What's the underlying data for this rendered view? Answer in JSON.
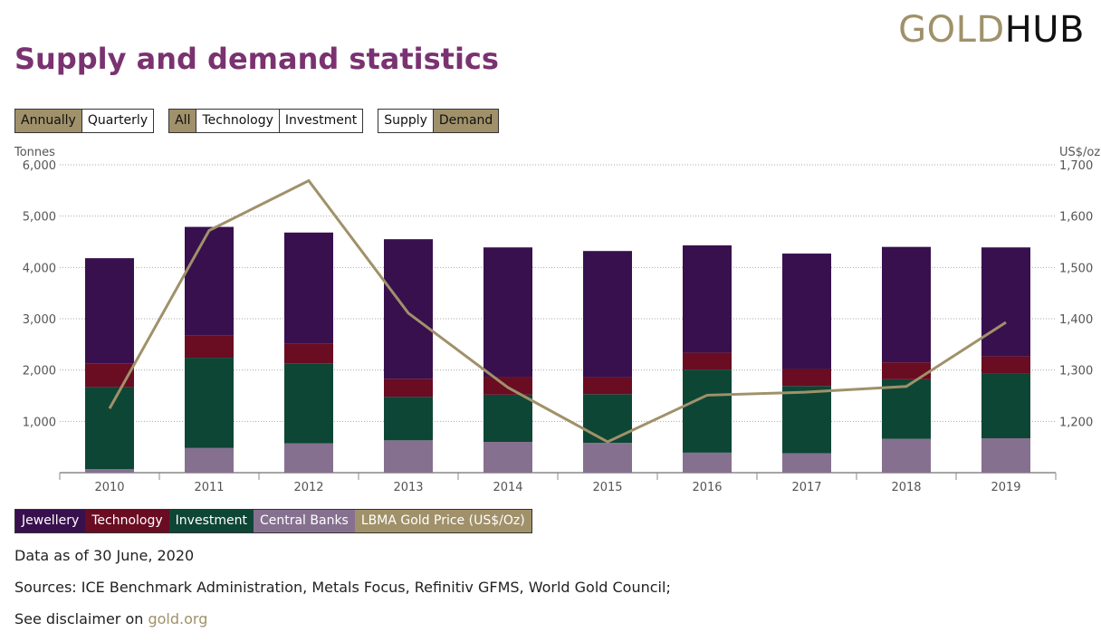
{
  "logo": {
    "part1": "GOLD",
    "part2": "HUB"
  },
  "title": "Supply and demand statistics",
  "toggles": {
    "period": [
      "Annually",
      "Quarterly"
    ],
    "sector": [
      "All",
      "Technology",
      "Investment"
    ],
    "side": [
      "Supply",
      "Demand"
    ],
    "active": [
      "Annually",
      "All",
      "Demand"
    ]
  },
  "colors": {
    "jewellery": "#38104e",
    "technology": "#6a0c22",
    "investment": "#0e4636",
    "central_banks": "#86708f",
    "price": "#a0916a",
    "accent": "#a0916a",
    "title": "#7a3270"
  },
  "chart_data": {
    "type": "bar",
    "stacked": true,
    "categories": [
      "2010",
      "2011",
      "2012",
      "2013",
      "2014",
      "2015",
      "2016",
      "2017",
      "2018",
      "2019"
    ],
    "ylabel": "Tonnes",
    "y2label": "US$/oz",
    "ylim": [
      0,
      6000
    ],
    "y2lim": [
      1100,
      1700
    ],
    "yticks": [
      "1,000",
      "2,000",
      "3,000",
      "4,000",
      "5,000",
      "6,000"
    ],
    "y2ticks": [
      "1,200",
      "1,300",
      "1,400",
      "1,500",
      "1,600",
      "1,700"
    ],
    "grid": true,
    "series": [
      {
        "name": "Central Banks",
        "key": "central_banks",
        "values": [
          70,
          480,
          570,
          630,
          600,
          580,
          390,
          380,
          660,
          670
        ]
      },
      {
        "name": "Investment",
        "key": "investment",
        "values": [
          1600,
          1760,
          1560,
          850,
          920,
          950,
          1620,
          1310,
          1160,
          1270
        ]
      },
      {
        "name": "Technology",
        "key": "technology",
        "values": [
          460,
          430,
          380,
          350,
          350,
          330,
          330,
          330,
          330,
          330
        ]
      },
      {
        "name": "Jewellery",
        "key": "jewellery",
        "values": [
          2050,
          2120,
          2170,
          2720,
          2520,
          2460,
          2090,
          2250,
          2250,
          2120
        ]
      }
    ],
    "line": {
      "name": "LBMA Gold Price (US$/Oz)",
      "values": [
        1225,
        1572,
        1669,
        1411,
        1266,
        1160,
        1251,
        1257,
        1268,
        1393
      ]
    },
    "legend": [
      "Jewellery",
      "Technology",
      "Investment",
      "Central Banks",
      "LBMA Gold Price (US$/Oz)"
    ]
  },
  "footer": {
    "data_as_of": "Data as of 30 June, 2020",
    "sources": "Sources: ICE Benchmark Administration, Metals Focus, Refinitiv GFMS, World Gold Council;",
    "disclaimer_prefix": "See disclaimer on ",
    "disclaimer_link": "gold.org"
  }
}
